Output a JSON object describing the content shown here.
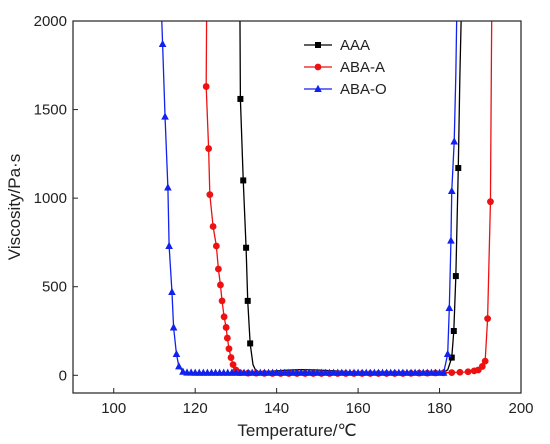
{
  "chart_data": {
    "type": "line",
    "xlabel": "Temperature/℃",
    "ylabel": "Viscosity/Pa·s",
    "xlim": [
      90,
      200
    ],
    "ylim": [
      -100,
      2000
    ],
    "xticks": [
      100,
      120,
      140,
      160,
      180,
      200
    ],
    "yticks": [
      0,
      500,
      1000,
      1500,
      2000
    ],
    "grid": false,
    "legend_position": "top-right",
    "series": [
      {
        "name": "AAA",
        "color": "#000000",
        "marker": "square",
        "segments": [
          [
            [
              131.0,
              2000
            ],
            [
              131.1,
              1560
            ],
            [
              131.8,
              1100
            ],
            [
              132.5,
              720
            ],
            [
              132.9,
              420
            ],
            [
              133.5,
              180
            ],
            [
              134.2,
              60
            ],
            [
              135,
              20
            ],
            [
              138,
              22
            ],
            [
              142,
              28
            ],
            [
              146,
              32
            ],
            [
              150,
              30
            ],
            [
              155,
              24
            ],
            [
              160,
              18
            ],
            [
              165,
              14
            ],
            [
              170,
              12
            ],
            [
              175,
              12
            ],
            [
              180,
              14
            ],
            [
              182,
              30
            ],
            [
              183.0,
              100
            ],
            [
              183.5,
              250
            ],
            [
              184.0,
              560
            ],
            [
              184.6,
              1170
            ],
            [
              185.0,
              1700
            ],
            [
              185.3,
              2000
            ]
          ]
        ],
        "marker_points": [
          [
            131.1,
            1560
          ],
          [
            131.8,
            1100
          ],
          [
            132.5,
            720
          ],
          [
            132.9,
            420
          ],
          [
            133.5,
            180
          ],
          [
            183.0,
            100
          ],
          [
            183.5,
            250
          ],
          [
            184.0,
            560
          ],
          [
            184.6,
            1170
          ]
        ]
      },
      {
        "name": "ABA-A",
        "color": "#ee1111",
        "marker": "circle",
        "segments": [
          [
            [
              122.8,
              2000
            ],
            [
              122.7,
              1630
            ],
            [
              123.3,
              1280
            ],
            [
              123.6,
              1020
            ],
            [
              124.4,
              840
            ],
            [
              125.2,
              730
            ],
            [
              125.7,
              600
            ],
            [
              126.2,
              510
            ],
            [
              126.6,
              420
            ],
            [
              127.1,
              330
            ],
            [
              127.6,
              270
            ],
            [
              127.9,
              210
            ],
            [
              128.3,
              150
            ],
            [
              128.8,
              100
            ],
            [
              129.3,
              60
            ],
            [
              130.0,
              30
            ],
            [
              131,
              15
            ],
            [
              135,
              12
            ],
            [
              140,
              10
            ],
            [
              145,
              10
            ],
            [
              150,
              10
            ],
            [
              155,
              10
            ],
            [
              160,
              10
            ],
            [
              165,
              10
            ],
            [
              170,
              10
            ],
            [
              175,
              12
            ],
            [
              180,
              14
            ],
            [
              184,
              16
            ],
            [
              186,
              18
            ],
            [
              188,
              22
            ],
            [
              189.5,
              30
            ],
            [
              190.5,
              50
            ],
            [
              191.2,
              80
            ],
            [
              191.8,
              320
            ],
            [
              192.5,
              980
            ],
            [
              192.8,
              2000
            ]
          ]
        ],
        "marker_points": [
          [
            122.7,
            1630
          ],
          [
            123.3,
            1280
          ],
          [
            123.6,
            1020
          ],
          [
            124.4,
            840
          ],
          [
            125.2,
            730
          ],
          [
            125.7,
            600
          ],
          [
            126.2,
            510
          ],
          [
            126.6,
            420
          ],
          [
            127.1,
            330
          ],
          [
            127.6,
            270
          ],
          [
            127.9,
            210
          ],
          [
            128.3,
            150
          ],
          [
            128.8,
            100
          ],
          [
            129.3,
            60
          ],
          [
            130.0,
            30
          ],
          [
            131,
            15
          ],
          [
            133,
            12
          ],
          [
            135,
            12
          ],
          [
            137,
            11
          ],
          [
            139,
            10
          ],
          [
            141,
            10
          ],
          [
            143,
            10
          ],
          [
            145,
            10
          ],
          [
            147,
            10
          ],
          [
            149,
            10
          ],
          [
            151,
            10
          ],
          [
            153,
            10
          ],
          [
            155,
            10
          ],
          [
            157,
            10
          ],
          [
            159,
            10
          ],
          [
            161,
            10
          ],
          [
            163,
            10
          ],
          [
            165,
            10
          ],
          [
            167,
            10
          ],
          [
            169,
            10
          ],
          [
            171,
            10
          ],
          [
            173,
            11
          ],
          [
            175,
            12
          ],
          [
            177,
            12
          ],
          [
            179,
            13
          ],
          [
            181,
            14
          ],
          [
            183,
            15
          ],
          [
            185,
            17
          ],
          [
            187,
            20
          ],
          [
            188.5,
            25
          ],
          [
            189.5,
            30
          ],
          [
            190.5,
            50
          ],
          [
            191.2,
            80
          ],
          [
            191.8,
            320
          ],
          [
            192.5,
            980
          ]
        ]
      },
      {
        "name": "ABA-O",
        "color": "#1122ee",
        "marker": "triangle",
        "segments": [
          [
            [
              111.8,
              2000
            ],
            [
              112.0,
              1870
            ],
            [
              112.6,
              1460
            ],
            [
              113.3,
              1060
            ],
            [
              113.6,
              730
            ],
            [
              114.3,
              470
            ],
            [
              114.7,
              270
            ],
            [
              115.4,
              120
            ],
            [
              116.0,
              50
            ],
            [
              117.0,
              20
            ],
            [
              118,
              15
            ],
            [
              125,
              14
            ],
            [
              135,
              14
            ],
            [
              145,
              14
            ],
            [
              155,
              14
            ],
            [
              165,
              14
            ],
            [
              175,
              14
            ],
            [
              181,
              14
            ],
            [
              182.0,
              120
            ],
            [
              182.4,
              380
            ],
            [
              182.8,
              760
            ],
            [
              183.0,
              1040
            ],
            [
              183.6,
              1320
            ],
            [
              184.0,
              1700
            ],
            [
              184.2,
              2000
            ]
          ]
        ],
        "marker_points": [
          [
            112.0,
            1870
          ],
          [
            112.6,
            1460
          ],
          [
            113.3,
            1060
          ],
          [
            113.6,
            730
          ],
          [
            114.3,
            470
          ],
          [
            114.7,
            270
          ],
          [
            115.4,
            120
          ],
          [
            116.0,
            50
          ],
          [
            117.0,
            20
          ],
          [
            118,
            15
          ],
          [
            119,
            15
          ],
          [
            120,
            14
          ],
          [
            121,
            14
          ],
          [
            122,
            14
          ],
          [
            123,
            14
          ],
          [
            124,
            14
          ],
          [
            125,
            14
          ],
          [
            126,
            14
          ],
          [
            127,
            14
          ],
          [
            128,
            14
          ],
          [
            129,
            14
          ],
          [
            130,
            14
          ],
          [
            131,
            14
          ],
          [
            132,
            14
          ],
          [
            133,
            14
          ],
          [
            134,
            14
          ],
          [
            135,
            14
          ],
          [
            136,
            14
          ],
          [
            137,
            14
          ],
          [
            138,
            14
          ],
          [
            139,
            14
          ],
          [
            140,
            14
          ],
          [
            141,
            14
          ],
          [
            142,
            14
          ],
          [
            143,
            14
          ],
          [
            144,
            14
          ],
          [
            145,
            14
          ],
          [
            146,
            14
          ],
          [
            147,
            14
          ],
          [
            148,
            14
          ],
          [
            149,
            14
          ],
          [
            150,
            14
          ],
          [
            151,
            14
          ],
          [
            152,
            14
          ],
          [
            153,
            14
          ],
          [
            154,
            14
          ],
          [
            155,
            14
          ],
          [
            156,
            14
          ],
          [
            157,
            14
          ],
          [
            158,
            14
          ],
          [
            159,
            14
          ],
          [
            160,
            14
          ],
          [
            161,
            14
          ],
          [
            162,
            14
          ],
          [
            163,
            14
          ],
          [
            164,
            14
          ],
          [
            165,
            14
          ],
          [
            166,
            14
          ],
          [
            167,
            14
          ],
          [
            168,
            14
          ],
          [
            169,
            14
          ],
          [
            170,
            14
          ],
          [
            171,
            14
          ],
          [
            172,
            14
          ],
          [
            173,
            14
          ],
          [
            174,
            14
          ],
          [
            175,
            14
          ],
          [
            176,
            14
          ],
          [
            177,
            14
          ],
          [
            178,
            14
          ],
          [
            179,
            14
          ],
          [
            180,
            14
          ],
          [
            181,
            14
          ],
          [
            182.0,
            120
          ],
          [
            182.4,
            380
          ],
          [
            182.8,
            760
          ],
          [
            183.0,
            1040
          ],
          [
            183.6,
            1320
          ]
        ]
      }
    ]
  }
}
